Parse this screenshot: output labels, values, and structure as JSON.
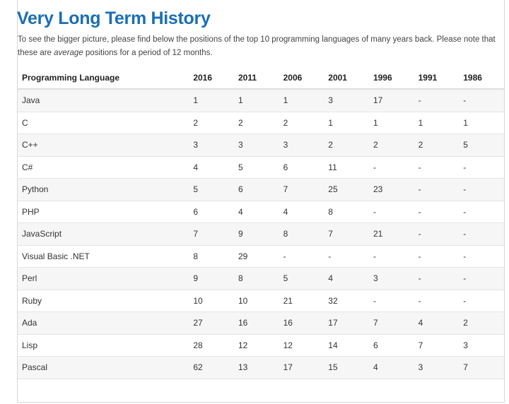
{
  "title": "Very Long Term History",
  "intro": {
    "before": "To see the bigger picture, please find below the positions of the top 10 programming languages of many years back. Please note that these are ",
    "emphasis": "average",
    "after": " positions for a period of 12 months."
  },
  "table": {
    "header": [
      "Programming Language",
      "2016",
      "2011",
      "2006",
      "2001",
      "1996",
      "1991",
      "1986"
    ],
    "rows": [
      [
        "Java",
        "1",
        "1",
        "1",
        "3",
        "17",
        "-",
        "-"
      ],
      [
        "C",
        "2",
        "2",
        "2",
        "1",
        "1",
        "1",
        "1"
      ],
      [
        "C++",
        "3",
        "3",
        "3",
        "2",
        "2",
        "2",
        "5"
      ],
      [
        "C#",
        "4",
        "5",
        "6",
        "11",
        "-",
        "-",
        "-"
      ],
      [
        "Python",
        "5",
        "6",
        "7",
        "25",
        "23",
        "-",
        "-"
      ],
      [
        "PHP",
        "6",
        "4",
        "4",
        "8",
        "-",
        "-",
        "-"
      ],
      [
        "JavaScript",
        "7",
        "9",
        "8",
        "7",
        "21",
        "-",
        "-"
      ],
      [
        "Visual Basic .NET",
        "8",
        "29",
        "-",
        "-",
        "-",
        "-",
        "-"
      ],
      [
        "Perl",
        "9",
        "8",
        "5",
        "4",
        "3",
        "-",
        "-"
      ],
      [
        "Ruby",
        "10",
        "10",
        "21",
        "32",
        "-",
        "-",
        "-"
      ],
      [
        "Ada",
        "27",
        "16",
        "16",
        "17",
        "7",
        "4",
        "2"
      ],
      [
        "Lisp",
        "28",
        "12",
        "12",
        "14",
        "6",
        "7",
        "3"
      ],
      [
        "Pascal",
        "62",
        "13",
        "17",
        "15",
        "4",
        "3",
        "7"
      ]
    ]
  }
}
